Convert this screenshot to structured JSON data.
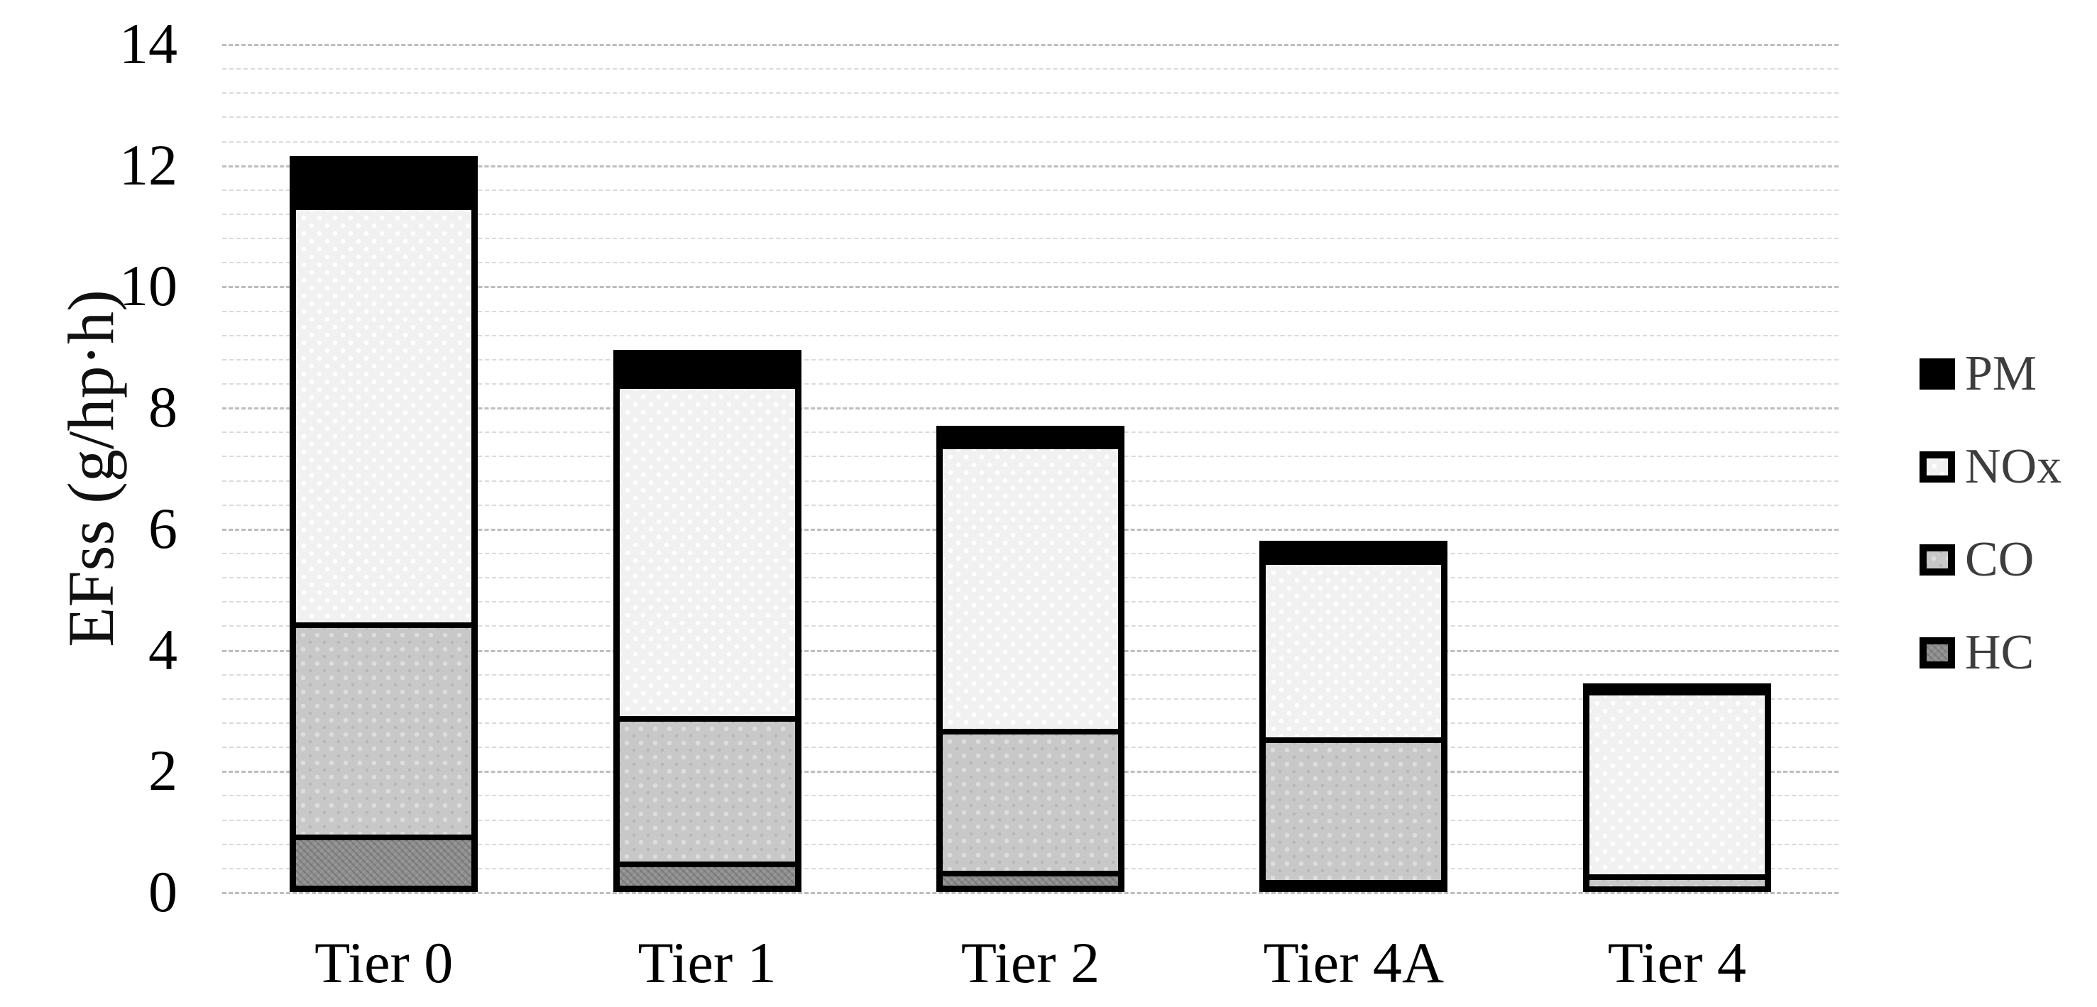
{
  "chart_data": {
    "type": "bar",
    "stacked": true,
    "title": "",
    "categories": [
      "Tier 0",
      "Tier 1",
      "Tier 2",
      "Tier 4A",
      "Tier 4"
    ],
    "series": [
      {
        "name": "HC",
        "key": "hc",
        "color": "#8e8e8e",
        "values": [
          0.95,
          0.5,
          0.35,
          0.2,
          0.15
        ]
      },
      {
        "name": "CO",
        "key": "co",
        "color": "#c8c8c8",
        "values": [
          3.5,
          2.4,
          2.35,
          2.35,
          0.2
        ]
      },
      {
        "name": "NOx",
        "key": "nox",
        "color": "#f1f1f1",
        "values": [
          6.9,
          5.5,
          4.7,
          2.95,
          3.05
        ]
      },
      {
        "name": "PM",
        "key": "pm",
        "color": "#000000",
        "values": [
          0.8,
          0.55,
          0.3,
          0.3,
          0.05
        ]
      }
    ],
    "stack_order_bottom_to_top": [
      "HC",
      "CO",
      "NOx",
      "PM"
    ],
    "totals": [
      12.15,
      8.95,
      7.7,
      5.8,
      3.45
    ],
    "xlabel": "",
    "ylabel": "EFss (g/hp·h)",
    "ylim": [
      0,
      14
    ],
    "yticks": [
      0,
      2,
      4,
      6,
      8,
      10,
      12,
      14
    ],
    "ytick_step": 2,
    "minor_grid_step": 0.4,
    "grid": "horizontal dashed, light minor lines every 0.4 and darker major lines every 2",
    "legend_position": "right",
    "colors": {
      "pm": "#000000",
      "nox": "#f1f1f1",
      "co": "#c8c8c8",
      "hc": "#8e8e8e",
      "bar_outline": "#000000",
      "grid_minor": "#dadada",
      "grid_major": "#bdbdbd",
      "axis_text": "#000000",
      "legend_text": "#3d3d3d",
      "background": "#ffffff"
    }
  },
  "legend": {
    "items": [
      {
        "label": "PM",
        "key": "pm"
      },
      {
        "label": "NOx",
        "key": "nox"
      },
      {
        "label": "CO",
        "key": "co"
      },
      {
        "label": "HC",
        "key": "hc"
      }
    ]
  }
}
